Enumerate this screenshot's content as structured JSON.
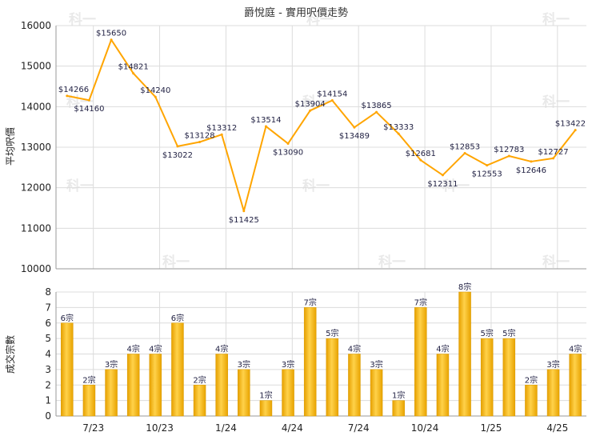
{
  "chart_data": [
    {
      "type": "line",
      "title": "爵悅庭 - 實用呎價走勢",
      "ylabel": "平均呎價",
      "ylim": [
        10000,
        16000
      ],
      "yticks": [
        10000,
        11000,
        12000,
        13000,
        14000,
        15000,
        16000
      ],
      "xticks": [
        "7/23",
        "10/23",
        "1/24",
        "4/24",
        "7/24",
        "10/24",
        "1/25",
        "4/25"
      ],
      "grid": true,
      "color": "#ffa500",
      "series": [
        {
          "values": [
            14266,
            14160,
            15650,
            14821,
            14240,
            13022,
            13128,
            13312,
            11425,
            13514,
            13090,
            13904,
            14154,
            13489,
            13865,
            13333,
            12681,
            12311,
            12853,
            12553,
            12783,
            12646,
            12727,
            13422
          ]
        }
      ],
      "point_labels": [
        "$14266",
        "$14160",
        "$15650",
        "$14821",
        "$14240",
        "$13022",
        "$13128",
        "$13312",
        "$11425",
        "$13514",
        "$13090",
        "$13904",
        "$14154",
        "$13489",
        "$13865",
        "$13333",
        "$12681",
        "$12311",
        "$12853",
        "$12553",
        "$12783",
        "$12646",
        "$12727",
        "$13422"
      ]
    },
    {
      "type": "bar",
      "ylabel": "成交宗數",
      "ylim": [
        0,
        8
      ],
      "yticks": [
        0,
        1,
        2,
        3,
        4,
        5,
        6,
        7,
        8
      ],
      "xticks": [
        "7/23",
        "10/23",
        "1/24",
        "4/24",
        "7/24",
        "10/24",
        "1/25",
        "4/25"
      ],
      "grid": true,
      "color": "#f5b800",
      "values": [
        6,
        2,
        3,
        4,
        4,
        6,
        2,
        4,
        3,
        1,
        3,
        7,
        5,
        4,
        3,
        1,
        7,
        4,
        8,
        5,
        5,
        2,
        3,
        4
      ],
      "value_labels": [
        "6宗",
        "2宗",
        "3宗",
        "4宗",
        "4宗",
        "6宗",
        "2宗",
        "4宗",
        "3宗",
        "1宗",
        "3宗",
        "7宗",
        "5宗",
        "4宗",
        "3宗",
        "1宗",
        "7宗",
        "4宗",
        "8宗",
        "5宗",
        "5宗",
        "2宗",
        "3宗",
        "4宗"
      ]
    }
  ],
  "watermark": "科一"
}
